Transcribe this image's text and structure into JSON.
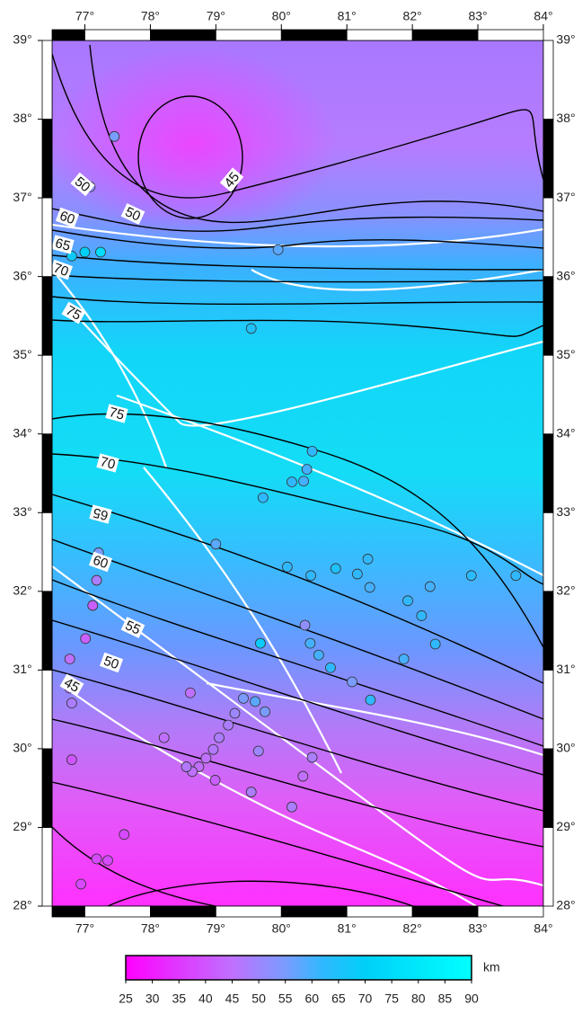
{
  "map": {
    "xlim": [
      76.5,
      84
    ],
    "ylim": [
      28,
      39
    ],
    "xticks": [
      {
        "value": 77,
        "label": "77°"
      },
      {
        "value": 78,
        "label": "78°"
      },
      {
        "value": 79,
        "label": "79°"
      },
      {
        "value": 80,
        "label": "80°"
      },
      {
        "value": 81,
        "label": "81°"
      },
      {
        "value": 82,
        "label": "82°"
      },
      {
        "value": 83,
        "label": "83°"
      },
      {
        "value": 84,
        "label": "84°"
      }
    ],
    "yticks": [
      {
        "value": 28,
        "label": "28°"
      },
      {
        "value": 29,
        "label": "29°"
      },
      {
        "value": 30,
        "label": "30°"
      },
      {
        "value": 31,
        "label": "31°"
      },
      {
        "value": 32,
        "label": "32°"
      },
      {
        "value": 33,
        "label": "33°"
      },
      {
        "value": 34,
        "label": "34°"
      },
      {
        "value": 35,
        "label": "35°"
      },
      {
        "value": 36,
        "label": "36°"
      },
      {
        "value": 37,
        "label": "37°"
      },
      {
        "value": 38,
        "label": "38°"
      },
      {
        "value": 39,
        "label": "39°"
      }
    ],
    "contour_labels": [
      "45",
      "50",
      "50",
      "60",
      "65",
      "70",
      "75",
      "75",
      "70",
      "65",
      "60",
      "55",
      "50",
      "45"
    ],
    "points": [
      {
        "lon": 77.45,
        "lat": 37.78,
        "value": 55
      },
      {
        "lon": 77.08,
        "lat": 37.14,
        "value": 52
      },
      {
        "lon": 76.8,
        "lat": 36.26,
        "value": 68
      },
      {
        "lon": 77.0,
        "lat": 36.31,
        "value": 70
      },
      {
        "lon": 77.24,
        "lat": 36.31,
        "value": 75
      },
      {
        "lon": 79.95,
        "lat": 36.34,
        "value": 58
      },
      {
        "lon": 79.54,
        "lat": 35.34,
        "value": 65
      },
      {
        "lon": 80.47,
        "lat": 33.78,
        "value": 62
      },
      {
        "lon": 80.39,
        "lat": 33.55,
        "value": 60
      },
      {
        "lon": 80.16,
        "lat": 33.39,
        "value": 62
      },
      {
        "lon": 80.34,
        "lat": 33.4,
        "value": 60
      },
      {
        "lon": 79.72,
        "lat": 33.19,
        "value": 62
      },
      {
        "lon": 79.0,
        "lat": 32.6,
        "value": 58
      },
      {
        "lon": 77.21,
        "lat": 32.49,
        "value": 55
      },
      {
        "lon": 77.18,
        "lat": 32.14,
        "value": 48
      },
      {
        "lon": 77.12,
        "lat": 31.82,
        "value": 42
      },
      {
        "lon": 80.09,
        "lat": 32.31,
        "value": 62
      },
      {
        "lon": 80.45,
        "lat": 32.2,
        "value": 62
      },
      {
        "lon": 80.83,
        "lat": 32.29,
        "value": 65
      },
      {
        "lon": 81.16,
        "lat": 32.22,
        "value": 62
      },
      {
        "lon": 81.32,
        "lat": 32.41,
        "value": 62
      },
      {
        "lon": 81.35,
        "lat": 32.05,
        "value": 60
      },
      {
        "lon": 81.93,
        "lat": 31.88,
        "value": 62
      },
      {
        "lon": 82.14,
        "lat": 31.69,
        "value": 62
      },
      {
        "lon": 82.27,
        "lat": 32.06,
        "value": 60
      },
      {
        "lon": 82.9,
        "lat": 32.2,
        "value": 63
      },
      {
        "lon": 83.58,
        "lat": 32.2,
        "value": 62
      },
      {
        "lon": 82.35,
        "lat": 31.33,
        "value": 62
      },
      {
        "lon": 81.87,
        "lat": 31.14,
        "value": 60
      },
      {
        "lon": 80.36,
        "lat": 31.57,
        "value": 52
      },
      {
        "lon": 80.44,
        "lat": 31.34,
        "value": 60
      },
      {
        "lon": 80.57,
        "lat": 31.19,
        "value": 60
      },
      {
        "lon": 80.75,
        "lat": 31.03,
        "value": 62
      },
      {
        "lon": 81.08,
        "lat": 30.85,
        "value": 55
      },
      {
        "lon": 81.36,
        "lat": 30.62,
        "value": 62
      },
      {
        "lon": 79.68,
        "lat": 31.34,
        "value": 68
      },
      {
        "lon": 77.01,
        "lat": 31.4,
        "value": 42
      },
      {
        "lon": 76.77,
        "lat": 31.14,
        "value": 45
      },
      {
        "lon": 76.77,
        "lat": 30.77,
        "value": 45
      },
      {
        "lon": 76.8,
        "lat": 30.58,
        "value": 48
      },
      {
        "lon": 78.61,
        "lat": 30.71,
        "value": 45
      },
      {
        "lon": 79.42,
        "lat": 30.64,
        "value": 55
      },
      {
        "lon": 79.6,
        "lat": 30.6,
        "value": 58
      },
      {
        "lon": 79.75,
        "lat": 30.47,
        "value": 55
      },
      {
        "lon": 79.29,
        "lat": 30.45,
        "value": 50
      },
      {
        "lon": 79.19,
        "lat": 30.3,
        "value": 48
      },
      {
        "lon": 79.05,
        "lat": 30.14,
        "value": 48
      },
      {
        "lon": 78.96,
        "lat": 29.99,
        "value": 47
      },
      {
        "lon": 78.85,
        "lat": 29.88,
        "value": 45
      },
      {
        "lon": 78.74,
        "lat": 29.77,
        "value": 45
      },
      {
        "lon": 78.64,
        "lat": 29.71,
        "value": 45
      },
      {
        "lon": 78.55,
        "lat": 29.77,
        "value": 47
      },
      {
        "lon": 78.99,
        "lat": 29.6,
        "value": 42
      },
      {
        "lon": 78.21,
        "lat": 30.14,
        "value": 45
      },
      {
        "lon": 79.65,
        "lat": 29.97,
        "value": 50
      },
      {
        "lon": 80.47,
        "lat": 29.89,
        "value": 48
      },
      {
        "lon": 80.33,
        "lat": 29.65,
        "value": 45
      },
      {
        "lon": 79.54,
        "lat": 29.45,
        "value": 48
      },
      {
        "lon": 80.16,
        "lat": 29.26,
        "value": 48
      },
      {
        "lon": 76.8,
        "lat": 29.86,
        "value": 40
      },
      {
        "lon": 77.6,
        "lat": 28.91,
        "value": 38
      },
      {
        "lon": 77.18,
        "lat": 28.6,
        "value": 38
      },
      {
        "lon": 77.35,
        "lat": 28.58,
        "value": 38
      },
      {
        "lon": 76.94,
        "lat": 28.28,
        "value": 38
      }
    ],
    "colorbar": {
      "label": "km",
      "lim": [
        25,
        90
      ],
      "ticks": [
        25,
        30,
        35,
        40,
        45,
        50,
        55,
        60,
        65,
        70,
        75,
        80,
        85,
        90
      ],
      "colormap": [
        {
          "value": 25,
          "color": "#ff00ff"
        },
        {
          "value": 45,
          "color": "#c070ff"
        },
        {
          "value": 55,
          "color": "#7a9cff"
        },
        {
          "value": 62,
          "color": "#30b8ff"
        },
        {
          "value": 70,
          "color": "#00d0f8"
        },
        {
          "value": 90,
          "color": "#00ffff"
        }
      ]
    }
  }
}
